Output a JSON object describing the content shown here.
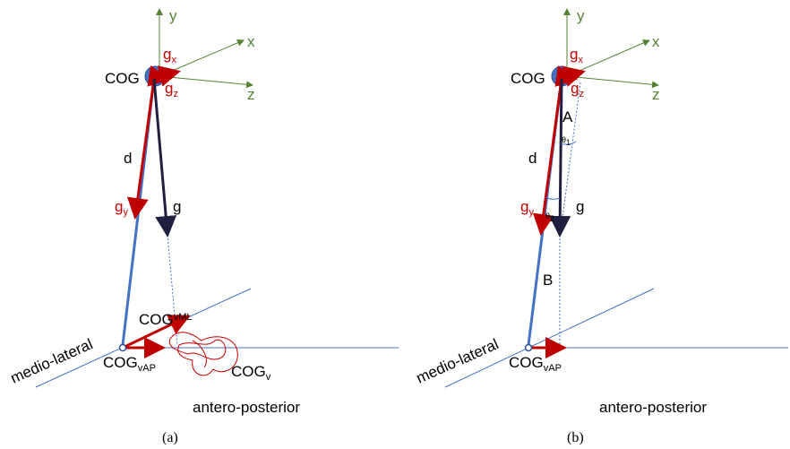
{
  "panels": [
    {
      "axis_y": "y",
      "axis_x": "x",
      "axis_z": "z",
      "cog": "COG",
      "gx": {
        "base": "g",
        "sub": "x"
      },
      "gz": {
        "base": "g",
        "sub": "z"
      },
      "d": "d",
      "gy": {
        "base": "g",
        "sub": "y"
      },
      "g": "g",
      "cog_vml": {
        "base": "COG",
        "sub": "vML"
      },
      "medio_lateral": "medio-lateral",
      "cog_vap": {
        "base": "COG",
        "sub": "vAP"
      },
      "cog_v": {
        "base": "COG",
        "sub": "v"
      },
      "antero_posterior": "antero-posterior",
      "caption": "(a)"
    },
    {
      "axis_y": "y",
      "axis_x": "x",
      "axis_z": "z",
      "cog": "COG",
      "gx": {
        "base": "g",
        "sub": "x"
      },
      "gz": {
        "base": "g",
        "sub": "z"
      },
      "a": "A",
      "theta1": {
        "base": "θ",
        "sub": "1"
      },
      "d": "d",
      "gy": {
        "base": "g",
        "sub": "y"
      },
      "g": "g",
      "theta2": {
        "base": "θ",
        "sub": "2"
      },
      "b": "B",
      "medio_lateral": "medio-lateral",
      "cog_vap": {
        "base": "COG",
        "sub": "vAP"
      },
      "antero_posterior": "antero-posterior",
      "caption": "(b)"
    }
  ]
}
